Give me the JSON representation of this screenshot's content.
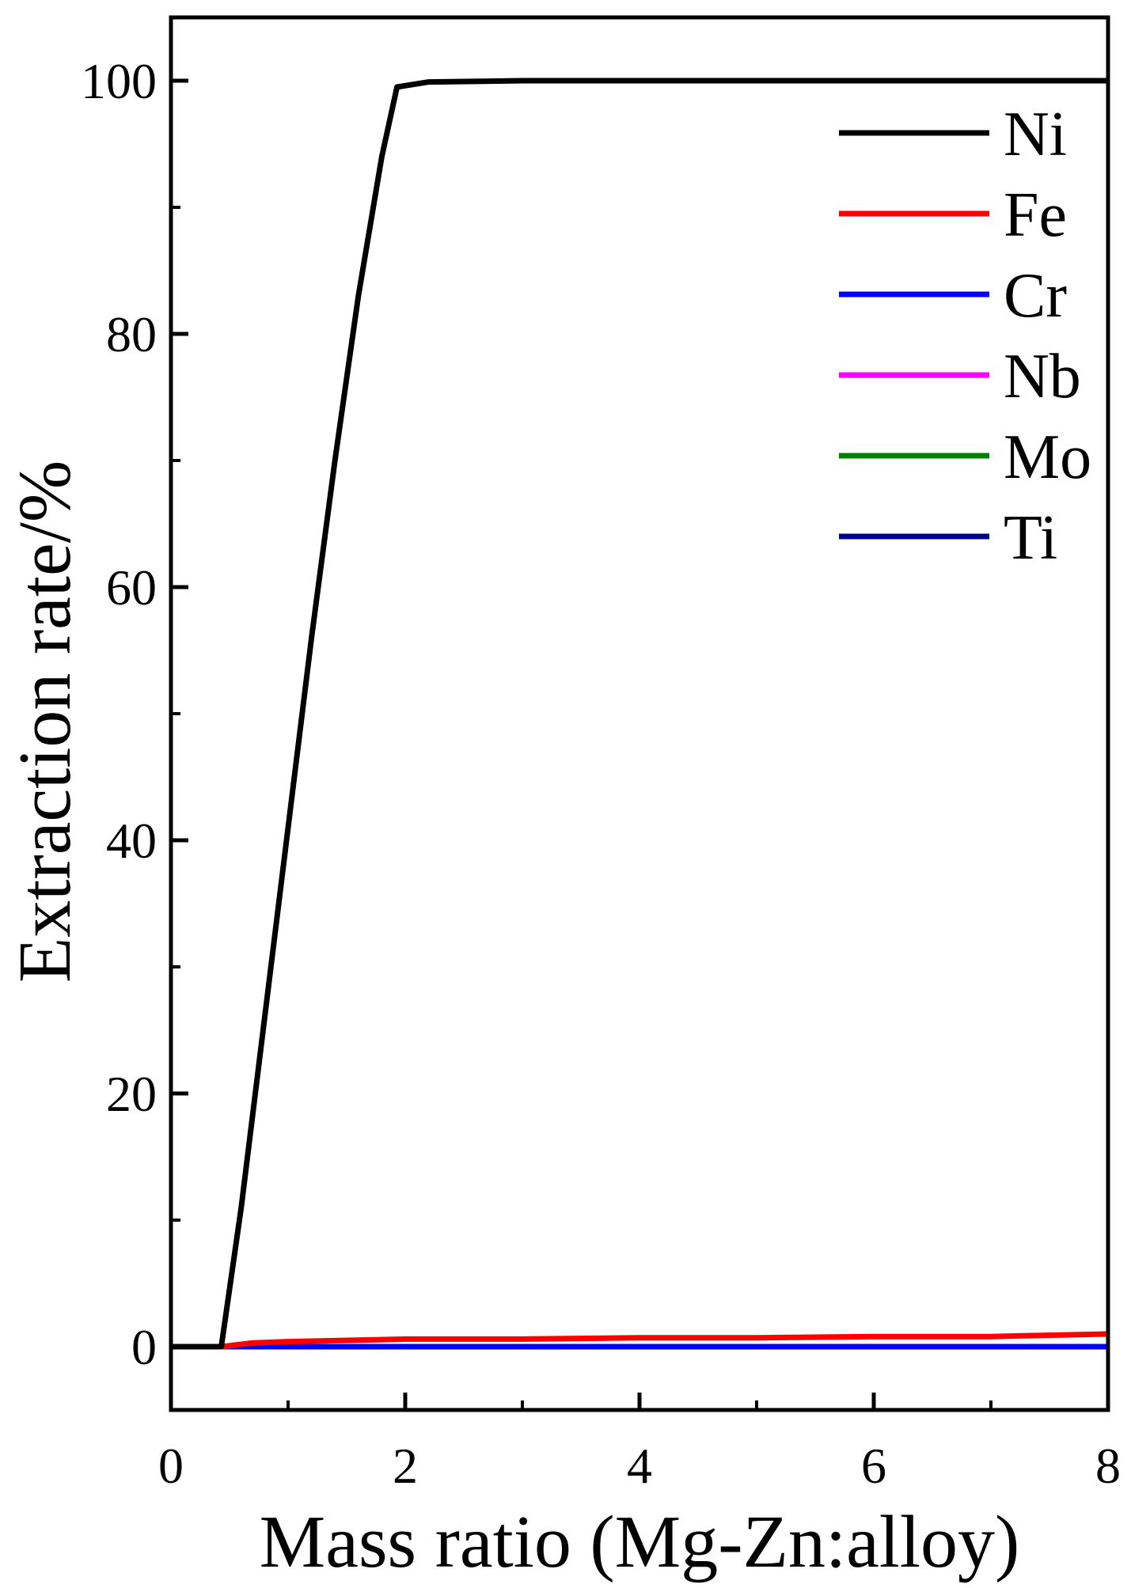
{
  "chart_data": {
    "type": "line",
    "title": "",
    "xlabel": "Mass ratio (Mg-Zn:alloy)",
    "ylabel": "Extraction rate/%",
    "xlim": [
      0,
      8
    ],
    "ylim": [
      -5,
      105
    ],
    "xticks": [
      0,
      2,
      4,
      6,
      8
    ],
    "xtick_labels": [
      "0",
      "2",
      "4",
      "6",
      "8"
    ],
    "xminor": [
      1,
      3,
      5,
      7
    ],
    "yticks": [
      0,
      20,
      40,
      60,
      80,
      100
    ],
    "ytick_labels": [
      "0",
      "20",
      "40",
      "60",
      "80",
      "100"
    ],
    "yminor": [
      10,
      30,
      50,
      70,
      90
    ],
    "grid": false,
    "legend_position": "top-right",
    "series": [
      {
        "name": "Ni",
        "color": "#000000",
        "x": [
          0,
          0.43,
          0.6,
          0.8,
          1.0,
          1.2,
          1.4,
          1.6,
          1.8,
          1.93,
          2.2,
          3,
          4,
          5,
          6,
          7,
          8
        ],
        "y": [
          0,
          0,
          11,
          26,
          41,
          56,
          70,
          83,
          94,
          99.5,
          99.9,
          100,
          100,
          100,
          100,
          100,
          100
        ]
      },
      {
        "name": "Fe",
        "color": "#ff0000",
        "x": [
          0,
          0.43,
          0.7,
          1,
          2,
          3,
          4,
          5,
          6,
          7,
          8
        ],
        "y": [
          0,
          0,
          0.3,
          0.4,
          0.6,
          0.6,
          0.7,
          0.7,
          0.8,
          0.8,
          1.0
        ]
      },
      {
        "name": "Cr",
        "color": "#0000ff",
        "x": [
          0,
          2,
          4,
          6,
          8
        ],
        "y": [
          0,
          0,
          0,
          0,
          0
        ]
      },
      {
        "name": "Nb",
        "color": "#ff00ff",
        "x": [
          0,
          2,
          4,
          6,
          8
        ],
        "y": [
          0,
          0,
          0,
          0,
          0
        ]
      },
      {
        "name": "Mo",
        "color": "#008000",
        "x": [
          0,
          2,
          4,
          6,
          8
        ],
        "y": [
          0,
          0,
          0,
          0,
          0
        ]
      },
      {
        "name": "Ti",
        "color": "#00008b",
        "x": [
          0,
          2,
          4,
          6,
          8
        ],
        "y": [
          0,
          0,
          0,
          0,
          0
        ]
      }
    ]
  }
}
